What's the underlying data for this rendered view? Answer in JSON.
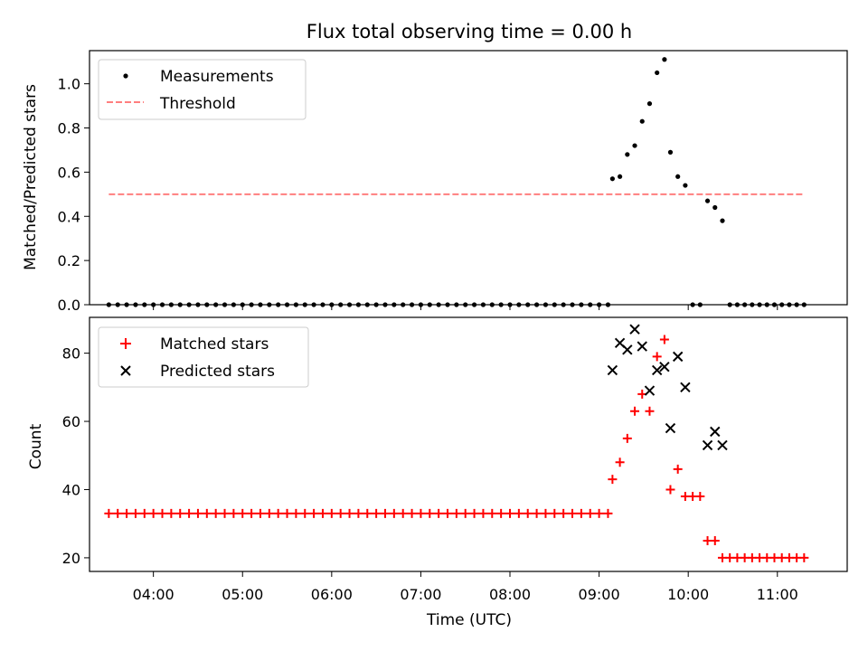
{
  "chart_data": [
    {
      "type": "scatter",
      "title": "Flux total observing time = 0.00 h",
      "xlabel": "",
      "ylabel": "Matched/Predicted stars",
      "ylim": [
        0,
        1.15
      ],
      "yticks": [
        "0.0",
        "0.2",
        "0.4",
        "0.6",
        "0.8",
        "1.0"
      ],
      "legend_position": "upper-left",
      "threshold": {
        "name": "Threshold",
        "value": 0.5,
        "x_start": "03:30",
        "x_end": "11:18",
        "color": "#ff7f7f",
        "style": "dashed"
      },
      "series": [
        {
          "name": "Measurements",
          "marker": "dot",
          "color": "#000000",
          "x": [
            "03:30",
            "03:36",
            "03:42",
            "03:48",
            "03:54",
            "04:00",
            "04:06",
            "04:12",
            "04:18",
            "04:24",
            "04:30",
            "04:36",
            "04:42",
            "04:48",
            "04:54",
            "05:00",
            "05:06",
            "05:12",
            "05:18",
            "05:24",
            "05:30",
            "05:36",
            "05:42",
            "05:48",
            "05:54",
            "06:00",
            "06:06",
            "06:12",
            "06:18",
            "06:24",
            "06:30",
            "06:36",
            "06:42",
            "06:48",
            "06:54",
            "07:00",
            "07:06",
            "07:12",
            "07:18",
            "07:24",
            "07:30",
            "07:36",
            "07:42",
            "07:48",
            "07:54",
            "08:00",
            "08:06",
            "08:12",
            "08:18",
            "08:24",
            "08:30",
            "08:36",
            "08:42",
            "08:48",
            "08:54",
            "09:00",
            "09:06",
            "09:09",
            "09:14",
            "09:19",
            "09:24",
            "09:29",
            "09:34",
            "09:39",
            "09:44",
            "09:48",
            "09:53",
            "09:58",
            "10:03",
            "10:08",
            "10:13",
            "10:18",
            "10:23",
            "10:28",
            "10:33",
            "10:38",
            "10:43",
            "10:48",
            "10:53",
            "10:58",
            "11:03",
            "11:08",
            "11:13",
            "11:18"
          ],
          "y": [
            0,
            0,
            0,
            0,
            0,
            0,
            0,
            0,
            0,
            0,
            0,
            0,
            0,
            0,
            0,
            0,
            0,
            0,
            0,
            0,
            0,
            0,
            0,
            0,
            0,
            0,
            0,
            0,
            0,
            0,
            0,
            0,
            0,
            0,
            0,
            0,
            0,
            0,
            0,
            0,
            0,
            0,
            0,
            0,
            0,
            0,
            0,
            0,
            0,
            0,
            0,
            0,
            0,
            0,
            0,
            0,
            0,
            0.57,
            0.58,
            0.68,
            0.72,
            0.83,
            0.91,
            1.05,
            1.11,
            0.69,
            0.58,
            0.54,
            0,
            0,
            0.47,
            0.44,
            0.38,
            0,
            0,
            0,
            0,
            0,
            0,
            0,
            0,
            0,
            0,
            0
          ]
        }
      ]
    },
    {
      "type": "scatter",
      "title": "",
      "xlabel": "Time (UTC)",
      "ylabel": "Count",
      "ylim": [
        16,
        90.5
      ],
      "yticks": [
        "20",
        "40",
        "60",
        "80"
      ],
      "xlim": [
        "03:17",
        "11:47"
      ],
      "xticks": [
        "04:00",
        "05:00",
        "06:00",
        "07:00",
        "08:00",
        "09:00",
        "10:00",
        "11:00"
      ],
      "legend_position": "upper-left",
      "series": [
        {
          "name": "Matched stars",
          "marker": "plus",
          "color": "#ff0000",
          "x": [
            "03:30",
            "03:36",
            "03:42",
            "03:48",
            "03:54",
            "04:00",
            "04:06",
            "04:12",
            "04:18",
            "04:24",
            "04:30",
            "04:36",
            "04:42",
            "04:48",
            "04:54",
            "05:00",
            "05:06",
            "05:12",
            "05:18",
            "05:24",
            "05:30",
            "05:36",
            "05:42",
            "05:48",
            "05:54",
            "06:00",
            "06:06",
            "06:12",
            "06:18",
            "06:24",
            "06:30",
            "06:36",
            "06:42",
            "06:48",
            "06:54",
            "07:00",
            "07:06",
            "07:12",
            "07:18",
            "07:24",
            "07:30",
            "07:36",
            "07:42",
            "07:48",
            "07:54",
            "08:00",
            "08:06",
            "08:12",
            "08:18",
            "08:24",
            "08:30",
            "08:36",
            "08:42",
            "08:48",
            "08:54",
            "09:00",
            "09:06",
            "09:09",
            "09:14",
            "09:19",
            "09:24",
            "09:29",
            "09:34",
            "09:39",
            "09:44",
            "09:48",
            "09:53",
            "09:58",
            "10:03",
            "10:08",
            "10:13",
            "10:18",
            "10:23",
            "10:28",
            "10:33",
            "10:38",
            "10:43",
            "10:48",
            "10:53",
            "10:58",
            "11:03",
            "11:08",
            "11:13",
            "11:18"
          ],
          "y": [
            33,
            33,
            33,
            33,
            33,
            33,
            33,
            33,
            33,
            33,
            33,
            33,
            33,
            33,
            33,
            33,
            33,
            33,
            33,
            33,
            33,
            33,
            33,
            33,
            33,
            33,
            33,
            33,
            33,
            33,
            33,
            33,
            33,
            33,
            33,
            33,
            33,
            33,
            33,
            33,
            33,
            33,
            33,
            33,
            33,
            33,
            33,
            33,
            33,
            33,
            33,
            33,
            33,
            33,
            33,
            33,
            33,
            43,
            48,
            55,
            63,
            68,
            63,
            79,
            84,
            40,
            46,
            38,
            38,
            38,
            25,
            25,
            20,
            20,
            20,
            20,
            20,
            20,
            20,
            20,
            20,
            20,
            20,
            20
          ]
        },
        {
          "name": "Predicted stars",
          "marker": "x",
          "color": "#000000",
          "x": [
            "09:09",
            "09:14",
            "09:19",
            "09:24",
            "09:29",
            "09:34",
            "09:39",
            "09:44",
            "09:48",
            "09:53",
            "09:58",
            "10:13",
            "10:18",
            "10:23"
          ],
          "y": [
            75,
            83,
            81,
            87,
            82,
            69,
            75,
            76,
            58,
            79,
            70,
            53,
            57,
            53
          ]
        }
      ]
    }
  ]
}
